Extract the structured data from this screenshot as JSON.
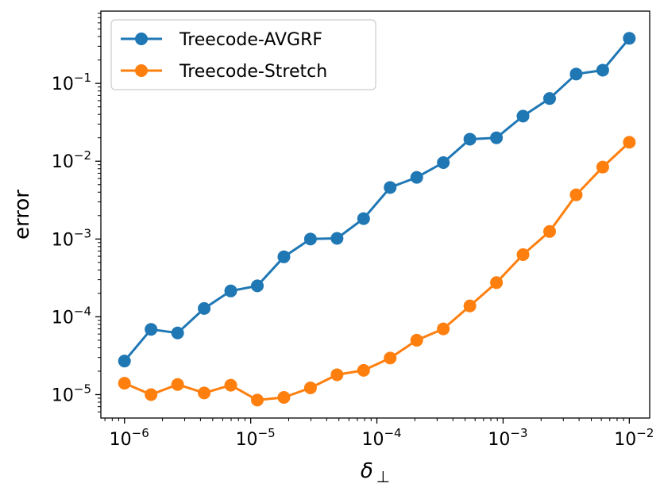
{
  "chart_data": {
    "type": "line",
    "xscale": "log",
    "yscale": "log",
    "xlim": [
      6.5e-07,
      0.0145
    ],
    "ylim": [
      5e-06,
      0.85
    ],
    "xlabel": "δ",
    "xlabel_subscript": "⊥",
    "ylabel": "error",
    "x_ticks": [
      {
        "base": "10",
        "exp": "−6",
        "value": 1e-06
      },
      {
        "base": "10",
        "exp": "−5",
        "value": 1e-05
      },
      {
        "base": "10",
        "exp": "−4",
        "value": 0.0001
      },
      {
        "base": "10",
        "exp": "−3",
        "value": 0.001
      },
      {
        "base": "10",
        "exp": "−2",
        "value": 0.01
      }
    ],
    "y_ticks": [
      {
        "base": "10",
        "exp": "−5",
        "value": 1e-05
      },
      {
        "base": "10",
        "exp": "−4",
        "value": 0.0001
      },
      {
        "base": "10",
        "exp": "−3",
        "value": 0.001
      },
      {
        "base": "10",
        "exp": "−2",
        "value": 0.01
      },
      {
        "base": "10",
        "exp": "−1",
        "value": 0.1
      }
    ],
    "x": [
      1e-06,
      1.624e-06,
      2.637e-06,
      4.281e-06,
      6.952e-06,
      1.129e-05,
      1.833e-05,
      2.976e-05,
      4.833e-05,
      7.848e-05,
      0.0001274,
      0.0002069,
      0.000336,
      0.0005456,
      0.0008859,
      0.001438,
      0.002336,
      0.003793,
      0.006158,
      0.01
    ],
    "series": [
      {
        "name": "Treecode-AVGRF",
        "color": "#1f77b4",
        "values": [
          2.7e-05,
          6.9e-05,
          6.2e-05,
          0.000128,
          0.000215,
          0.00025,
          0.00059,
          0.001,
          0.00102,
          0.00183,
          0.0046,
          0.0062,
          0.0096,
          0.0192,
          0.02,
          0.038,
          0.064,
          0.132,
          0.148,
          0.38
        ]
      },
      {
        "name": "Treecode-Stretch",
        "color": "#ff7f0e",
        "values": [
          1.4e-05,
          1e-05,
          1.35e-05,
          1.05e-05,
          1.32e-05,
          8.5e-06,
          9.2e-06,
          1.22e-05,
          1.8e-05,
          2.05e-05,
          2.95e-05,
          5e-05,
          7e-05,
          0.000138,
          0.000275,
          0.00063,
          0.00125,
          0.0037,
          0.0084,
          0.0175
        ]
      }
    ],
    "legend_position": "top-left",
    "grid": false
  }
}
